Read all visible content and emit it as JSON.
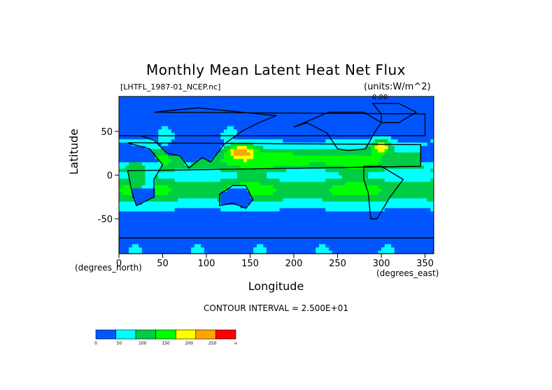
{
  "chart": {
    "title": "Monthly Mean Latent Heat Net Flux",
    "file_label": "[LHTFL_1987-01_NCEP.nc]",
    "units_label": "(units:W/m^2)",
    "xlabel": "Longitude",
    "ylabel": "Latitude",
    "x_unit_note": "(degrees_east)",
    "y_unit_note": "(degrees_north)",
    "contour_interval_text": "CONTOUR INTERVAL = 2.500E+01",
    "corner_value": "0.00"
  },
  "chart_data": {
    "type": "heatmap",
    "title": "Monthly Mean Latent Heat Net Flux",
    "xlabel": "Longitude",
    "ylabel": "Latitude",
    "xlim": [
      0,
      360
    ],
    "ylim": [
      -90,
      90
    ],
    "x_ticks": [
      0,
      50,
      100,
      150,
      200,
      250,
      300,
      350
    ],
    "y_ticks": [
      -50,
      0,
      50
    ],
    "colorbar": {
      "levels": [
        0,
        50,
        100,
        150,
        200,
        250,
        300
      ],
      "labels": [
        "0",
        "50",
        "100",
        "150",
        "200",
        "250",
        "∞"
      ],
      "colors": [
        "#0055ff",
        "#00ffff",
        "#00cc44",
        "#00ff00",
        "#ffff00",
        "#ffa500",
        "#ff0000"
      ]
    },
    "contour_interval": 25,
    "grid": false,
    "legend": "bottom-left"
  }
}
